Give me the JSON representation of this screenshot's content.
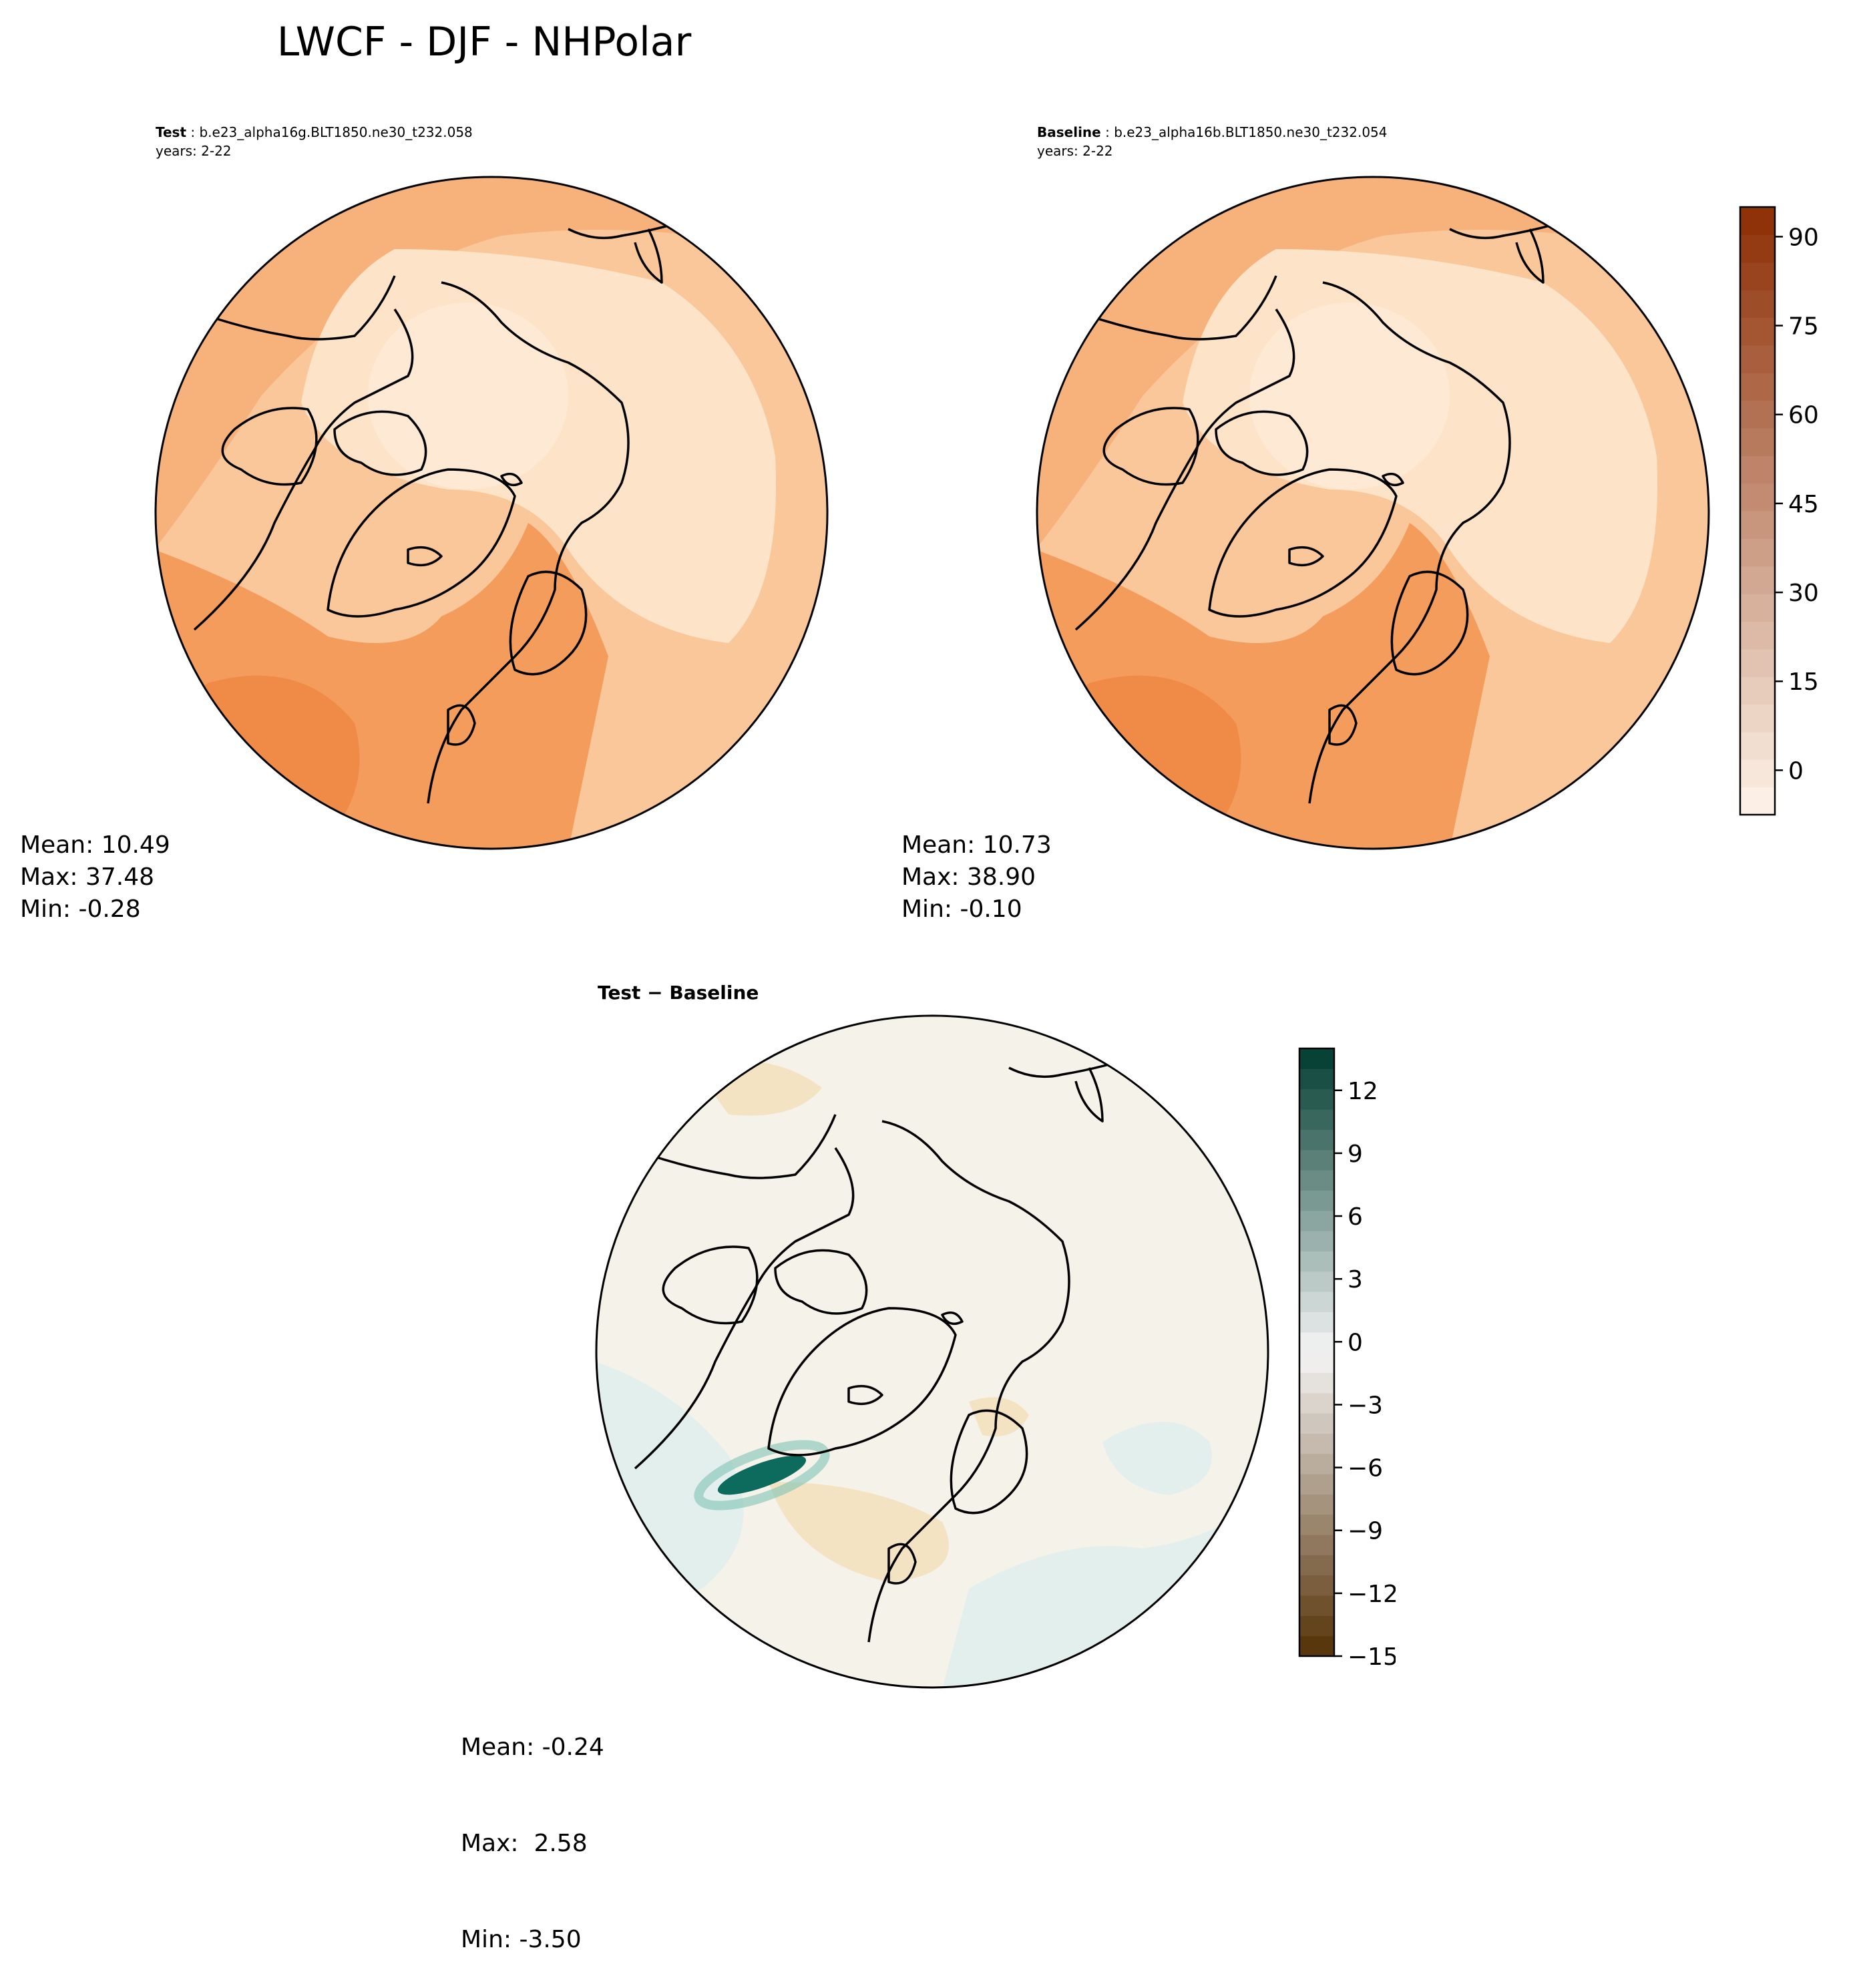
{
  "title": "LWCF - DJF - NHPolar",
  "panels": {
    "test": {
      "label_bold": "Test",
      "label_rest": " : b.e23_alpha16g.BLT1850.ne30_t232.058",
      "years": "years: 2-22",
      "stats": {
        "mean": "Mean: 10.49",
        "max": "Max: 37.48",
        "min": "Min: -0.28"
      }
    },
    "baseline": {
      "label_bold": "Baseline",
      "label_rest": " : b.e23_alpha16b.BLT1850.ne30_t232.054",
      "years": "years: 2-22",
      "stats": {
        "mean": "Mean: 10.73",
        "max": "Max: 38.90",
        "min": "Min: -0.10"
      }
    },
    "diff": {
      "label": "Test − Baseline",
      "stats": {
        "mean": "Mean: -0.24",
        "max": "Max:  2.58",
        "min": "Min: -3.50"
      }
    }
  },
  "colorbars": {
    "main": {
      "name": "Oranges",
      "range": [
        -7.5,
        95
      ],
      "ticks": [
        {
          "v": 0,
          "label": "0"
        },
        {
          "v": 15,
          "label": "15"
        },
        {
          "v": 30,
          "label": "30"
        },
        {
          "v": 45,
          "label": "45"
        },
        {
          "v": 60,
          "label": "60"
        },
        {
          "v": 75,
          "label": "75"
        },
        {
          "v": 90,
          "label": "90"
        }
      ],
      "colors": [
        "#fff5eb",
        "#8c2d04"
      ]
    },
    "diff": {
      "name": "BrBG",
      "range": [
        -15,
        14
      ],
      "ticks": [
        {
          "v": -15,
          "label": "−15"
        },
        {
          "v": -12,
          "label": "−12"
        },
        {
          "v": -9,
          "label": "−9"
        },
        {
          "v": -6,
          "label": "−6"
        },
        {
          "v": -3,
          "label": "−3"
        },
        {
          "v": 0,
          "label": "0"
        },
        {
          "v": 3,
          "label": "3"
        },
        {
          "v": 6,
          "label": "6"
        },
        {
          "v": 9,
          "label": "9"
        },
        {
          "v": 12,
          "label": "12"
        }
      ],
      "colors": [
        "#543005",
        "#f5f5f5",
        "#003c30"
      ]
    }
  },
  "field_colors": {
    "far_atlantic": "#f08a47",
    "atlantic": "#f49c5c",
    "pacific": "#f7b27c",
    "mid": "#fac79a",
    "high": "#fde3c7",
    "pole": "#fee9d4",
    "diff_bg": "#f5f2ea",
    "diff_pos": "#e3efed",
    "diff_neg": "#f3e3c3",
    "diff_peak": "#0d6b5e"
  }
}
